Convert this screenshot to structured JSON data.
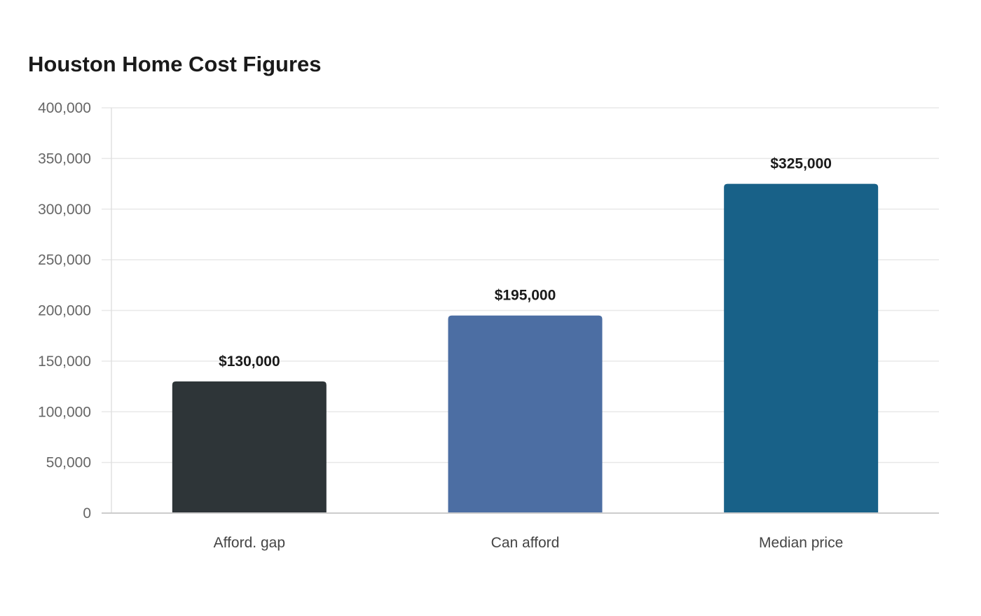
{
  "chart_data": {
    "type": "bar",
    "title": "Houston Home Cost Figures",
    "categories": [
      "Afford. gap",
      "Can afford",
      "Median price"
    ],
    "values": [
      130000,
      195000,
      325000
    ],
    "value_labels": [
      "$130,000",
      "$195,000",
      "$325,000"
    ],
    "colors": [
      "#2e3538",
      "#4c6ea3",
      "#186188"
    ],
    "xlabel": "",
    "ylabel": "",
    "ylim": [
      0,
      400000
    ],
    "y_ticks": [
      0,
      50000,
      100000,
      150000,
      200000,
      250000,
      300000,
      350000,
      400000
    ],
    "y_tick_labels": [
      "0",
      "50,000",
      "100,000",
      "150,000",
      "200,000",
      "250,000",
      "300,000",
      "350,000",
      "400,000"
    ],
    "grid": true,
    "legend": "none"
  }
}
